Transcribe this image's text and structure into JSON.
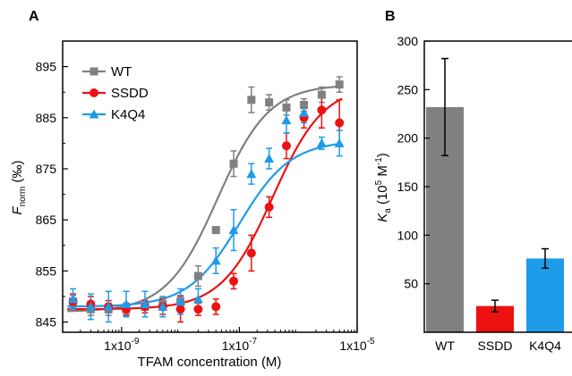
{
  "panels": [
    {
      "letter": "A"
    },
    {
      "letter": "B"
    }
  ],
  "chart_data": [
    {
      "type": "scatter",
      "panel": "A",
      "xlabel": "TFAM concentration (M)",
      "ylabel": {
        "main": "F",
        "sub": "norm",
        "unit": " (‰)"
      },
      "xscale": "log",
      "xlim": [
        1e-10,
        1e-05
      ],
      "ylim": [
        843,
        900
      ],
      "xticks": [
        1e-09,
        1e-07,
        1e-05
      ],
      "xtick_labels": [
        {
          "base": "1x10",
          "exp": "-9"
        },
        {
          "base": "1x10",
          "exp": "-7"
        },
        {
          "base": "1x10",
          "exp": "-5"
        }
      ],
      "yticks": [
        845,
        855,
        865,
        875,
        885,
        895
      ],
      "ytick_labels": [
        "845",
        "855",
        "865",
        "875",
        "885",
        "895"
      ],
      "legend_position": "top-left",
      "grid": false,
      "series": [
        {
          "name": "WT",
          "marker": "square",
          "color": "#808080",
          "x": [
            1.5e-10,
            3e-10,
            6e-10,
            1.2e-09,
            2.5e-09,
            5e-09,
            1e-08,
            2e-08,
            4e-08,
            8e-08,
            1.6e-07,
            3.2e-07,
            6.3e-07,
            1.25e-06,
            2.5e-06,
            5e-06
          ],
          "y": [
            849,
            847.5,
            847.5,
            847.5,
            848,
            848.5,
            849,
            854,
            863,
            876,
            888.5,
            888,
            887,
            887.5,
            889.5,
            891.5
          ],
          "err": [
            1.2,
            1.2,
            1.2,
            1.0,
            1.2,
            1.2,
            1.2,
            2.0,
            0.6,
            2.5,
            2.5,
            1.5,
            1.5,
            1.2,
            1.5,
            1.5
          ],
          "fit": {
            "bottom": 847,
            "top": 891.5,
            "kd": 4.3e-08,
            "n": 1
          }
        },
        {
          "name": "SSDD",
          "marker": "circle",
          "color": "#ee1111",
          "x": [
            1.5e-10,
            3e-10,
            6e-10,
            1.2e-09,
            2.5e-09,
            5e-09,
            1e-08,
            2e-08,
            4e-08,
            8e-08,
            1.6e-07,
            3.2e-07,
            6.3e-07,
            1.25e-06,
            2.5e-06,
            5e-06
          ],
          "y": [
            849,
            848.5,
            848,
            847.5,
            848,
            848,
            847.5,
            847.5,
            848,
            853,
            858.5,
            867.5,
            879.5,
            885,
            886.5,
            884
          ],
          "err": [
            1.5,
            1.5,
            1.2,
            1.2,
            1.2,
            1.5,
            2.5,
            1.2,
            1.5,
            1.5,
            3.5,
            2.0,
            2.5,
            2.0,
            3.5,
            4.5
          ],
          "fit": {
            "bottom": 847.5,
            "top": 891.5,
            "kd": 3.7e-07,
            "n": 1
          }
        },
        {
          "name": "K4Q4",
          "marker": "triangle",
          "color": "#1e9be8",
          "x": [
            1.5e-10,
            3e-10,
            6e-10,
            1.2e-09,
            2.5e-09,
            5e-09,
            1e-08,
            2e-08,
            4e-08,
            8e-08,
            1.6e-07,
            3.2e-07,
            6.3e-07,
            1.25e-06,
            2.5e-06,
            5e-06
          ],
          "y": [
            849.5,
            848,
            848,
            848.5,
            848.5,
            848,
            849,
            849.5,
            857,
            863,
            874,
            877,
            884.5,
            886,
            880,
            880
          ],
          "err": [
            2.0,
            2.5,
            3.0,
            2.5,
            2.5,
            2.0,
            2.5,
            2.0,
            2.5,
            4.0,
            2.0,
            2.0,
            2.5,
            2.0,
            1.2,
            2.5
          ],
          "fit": {
            "bottom": 848,
            "top": 880.5,
            "kd": 1e-07,
            "n": 1
          }
        }
      ]
    },
    {
      "type": "bar",
      "panel": "B",
      "ylabel": {
        "main": "K",
        "sub": "a",
        "unit": " (10",
        "exp1": "5",
        "mid": " M",
        "exp2": "-1",
        "end": ")"
      },
      "ylim": [
        0,
        300
      ],
      "yticks": [
        50,
        100,
        150,
        200,
        250,
        300
      ],
      "ytick_labels": [
        "50",
        "100",
        "150",
        "200",
        "250",
        "300"
      ],
      "categories": [
        "WT",
        "SSDD",
        "K4Q4"
      ],
      "values": [
        232,
        27,
        76
      ],
      "errors": [
        50,
        6,
        10
      ],
      "colors": [
        "#808080",
        "#ee1111",
        "#1e9be8"
      ]
    }
  ]
}
